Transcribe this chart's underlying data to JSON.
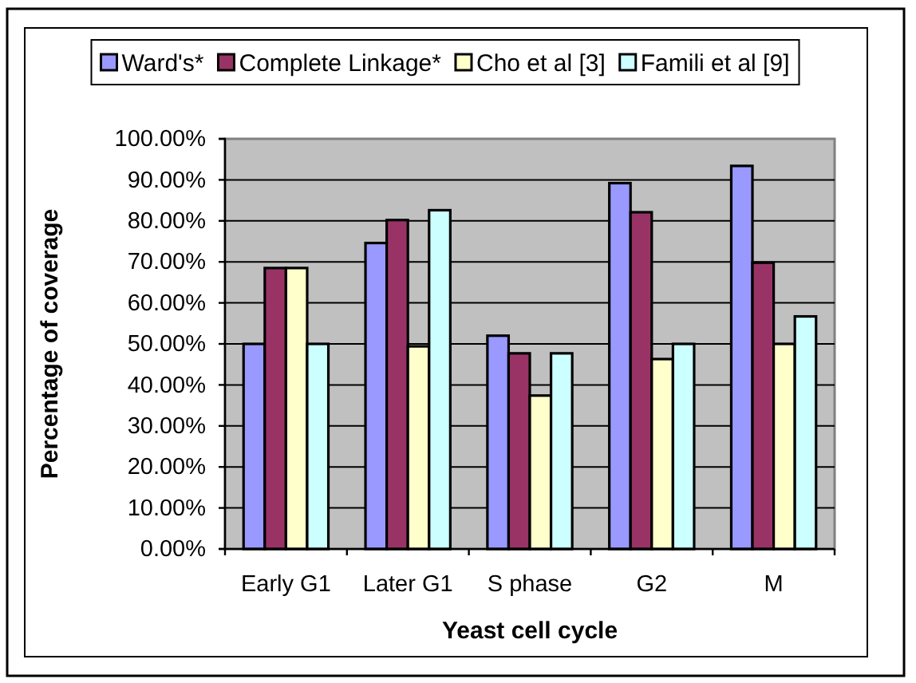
{
  "chart_data": {
    "type": "bar",
    "xlabel": "Yeast cell cycle",
    "ylabel": "Percentage of coverage",
    "categories": [
      "Early G1",
      "Later G1",
      "S phase",
      "G2",
      "M"
    ],
    "series": [
      {
        "name": "Ward's*",
        "color": "#9999ff",
        "values": [
          50,
          74.6,
          52,
          89.2,
          93.4
        ]
      },
      {
        "name": "Complete Linkage*",
        "color": "#993366",
        "values": [
          68.5,
          80.2,
          47.7,
          82.1,
          69.8
        ]
      },
      {
        "name": "Cho et al [3]",
        "color": "#ffffcc",
        "values": [
          68.5,
          49.4,
          37.4,
          46.3,
          50
        ]
      },
      {
        "name": "Famili et al [9]",
        "color": "#ccffff",
        "values": [
          50,
          82.6,
          47.7,
          50,
          56.7
        ]
      }
    ],
    "ylim": [
      0,
      100
    ],
    "yticks": [
      {
        "value": 0,
        "label": "0.00%"
      },
      {
        "value": 10,
        "label": "10.00%"
      },
      {
        "value": 20,
        "label": "20.00%"
      },
      {
        "value": 30,
        "label": "30.00%"
      },
      {
        "value": 40,
        "label": "40.00%"
      },
      {
        "value": 50,
        "label": "50.00%"
      },
      {
        "value": 60,
        "label": "60.00%"
      },
      {
        "value": 70,
        "label": "70.00%"
      },
      {
        "value": 80,
        "label": "80.00%"
      },
      {
        "value": 90,
        "label": "90.00%"
      },
      {
        "value": 100,
        "label": "100.00%"
      }
    ],
    "grid": "y",
    "legend": "top"
  }
}
